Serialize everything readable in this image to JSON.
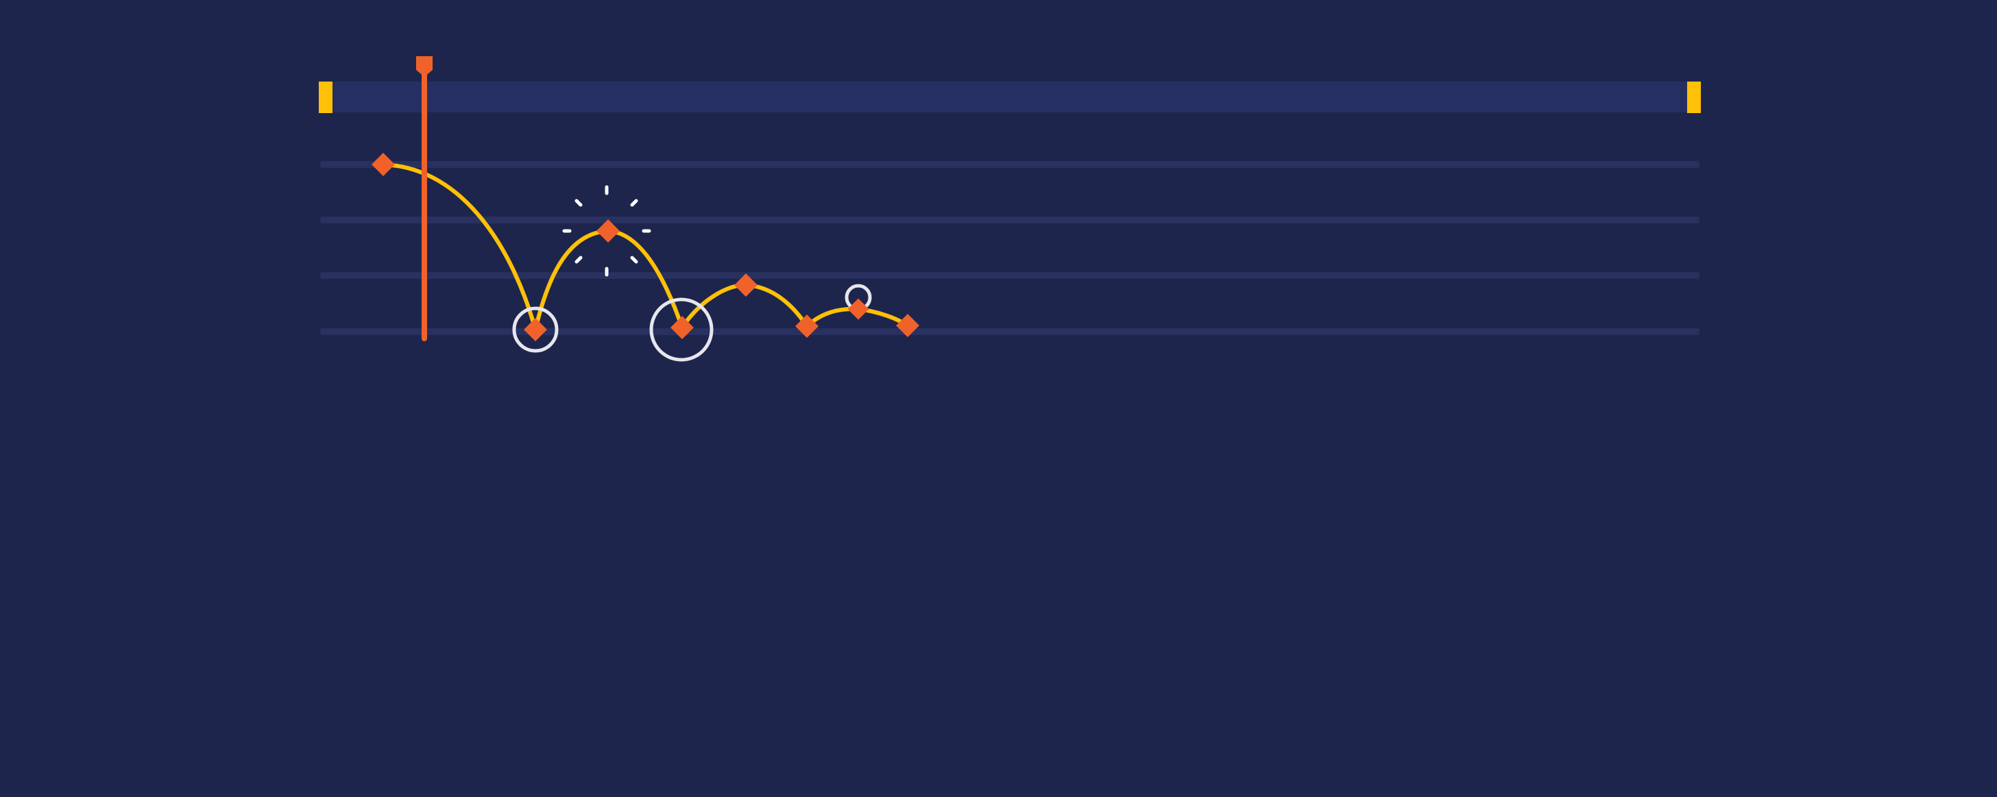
{
  "colors": {
    "background": "#1E254C",
    "track": "#262F62",
    "lane": "#28315F",
    "range_handle": "#FFC107",
    "playhead": "#F0622A",
    "keyframe": "#F0622A",
    "curve": "#FFC107",
    "marker_ring": "#E6E6EE",
    "spark": "#FFFFFF"
  },
  "icons": {
    "range_start": "range-start-handle-icon",
    "range_end": "range-end-handle-icon",
    "playhead": "playhead-icon",
    "keyframe": "diamond-keyframe-icon",
    "impact_ring": "ring-icon",
    "sparkle": "sparkle-icon"
  },
  "timeline": {
    "playhead_position": 0.077,
    "keyframes": [
      {
        "t": 0.046,
        "value": 1.0
      },
      {
        "t": 0.156,
        "value": 0.0,
        "impact": "ring"
      },
      {
        "t": 0.208,
        "value": 0.6,
        "effect": "sparkle"
      },
      {
        "t": 0.261,
        "value": 0.0,
        "impact": "ring-large"
      },
      {
        "t": 0.308,
        "value": 0.27
      },
      {
        "t": 0.353,
        "value": 0.0
      },
      {
        "t": 0.39,
        "value": 0.12,
        "impact": "ring-small"
      },
      {
        "t": 0.426,
        "value": 0.0
      }
    ]
  }
}
